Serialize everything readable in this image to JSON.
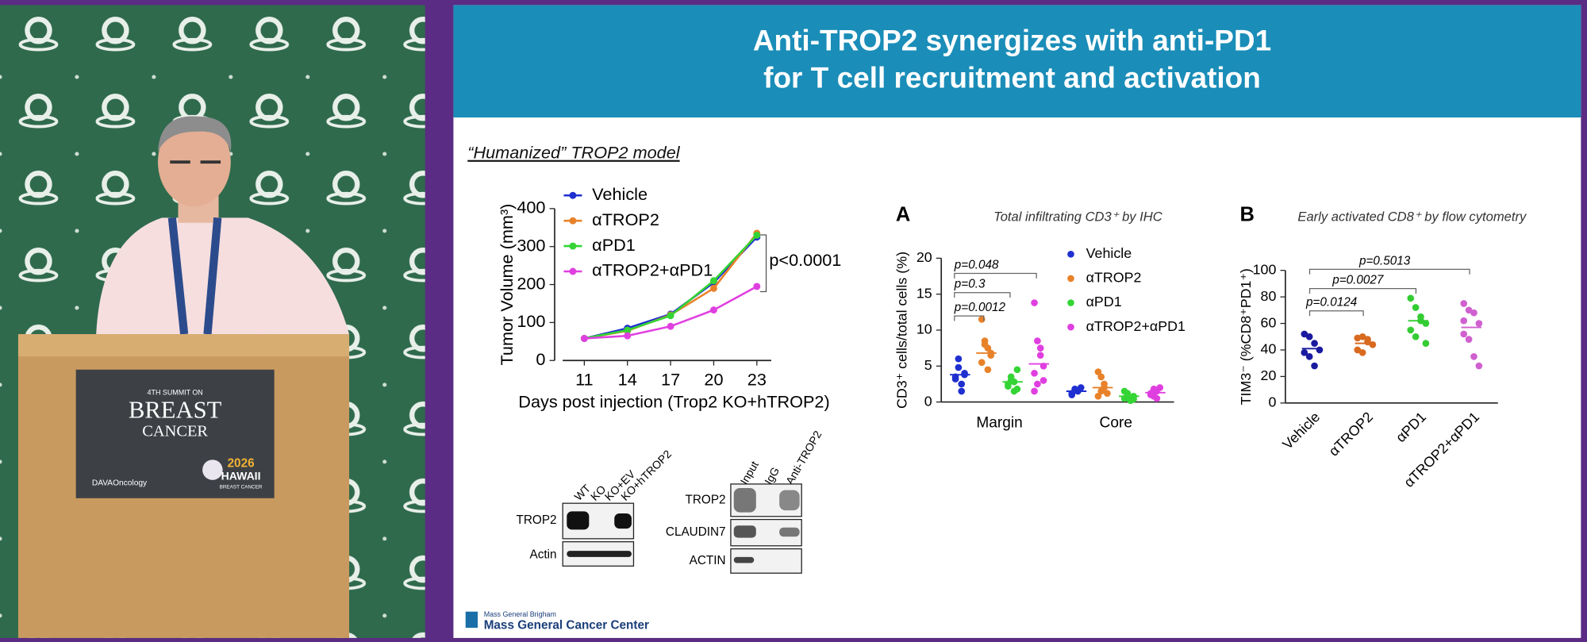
{
  "slide": {
    "title": [
      "Anti-TROP2 synergizes with anti-PD1",
      "for T cell recruitment and activation"
    ],
    "subtitle": "“Humanized” TROP2 model",
    "footer": {
      "org": "Mass General Brigham",
      "center": "Mass General Cancer Center"
    },
    "blot1": {
      "lanes": [
        "WT",
        "KO",
        "KO+EV",
        "KO+hTROP2"
      ],
      "rows": [
        "TROP2",
        "Actin"
      ]
    },
    "blot2": {
      "lanes": [
        "Input",
        "IgG",
        "Anti-TROP2"
      ],
      "rows": [
        "TROP2",
        "CLAUDIN7",
        "ACTIN"
      ]
    }
  },
  "video": {
    "sign": {
      "line1": "4TH SUMMIT ON",
      "line2": "BREAST",
      "line3": "CANCER",
      "sponsor": "DAVAOncology",
      "year": "2026",
      "place": "HAWAII",
      "place_sub": "BREAST CANCER"
    }
  },
  "chart_data": [
    {
      "type": "line",
      "x": [
        11,
        14,
        17,
        20,
        23
      ],
      "xlim": [
        9.5,
        24
      ],
      "xticks": [
        11,
        14,
        17,
        20,
        23
      ],
      "ylim": [
        0,
        400
      ],
      "yticks": [
        0,
        100,
        200,
        300,
        400
      ],
      "y_label": "Tumor Volume (mm³)",
      "x_label": "Days post injection (Trop2 KO+hTROP2)",
      "annotation": "p<0.0001",
      "series": [
        {
          "name": "Vehicle",
          "color": "#1f2fd0",
          "values": [
            58,
            85,
            122,
            205,
            325
          ]
        },
        {
          "name": "αTROP2",
          "color": "#e8822a",
          "values": [
            58,
            78,
            120,
            190,
            335
          ]
        },
        {
          "name": "αPD1",
          "color": "#35d435",
          "values": [
            58,
            80,
            118,
            210,
            330
          ]
        },
        {
          "name": "αTROP2+αPD1",
          "color": "#e03fe0",
          "values": [
            58,
            65,
            90,
            133,
            195
          ]
        }
      ]
    },
    {
      "type": "dot",
      "panel": "A",
      "title": "Total infiltrating CD3⁺ by IHC",
      "y_label": "CD3⁺ cells/total cells (%)",
      "categories": [
        "Margin",
        "Core"
      ],
      "ylim": [
        0,
        20
      ],
      "yticks": [
        0,
        5,
        10,
        15,
        20
      ],
      "annotations": [
        "p=0.048",
        "p=0.3",
        "p=0.0012"
      ],
      "series": [
        {
          "name": "Vehicle",
          "color": "#1f2fd0",
          "values": [
            3.8,
            1.5
          ],
          "points": [
            [
              3.5,
              4.8,
              2.5,
              4.0,
              3.2,
              6.0,
              1.5,
              3.8
            ],
            [
              1.2,
              1.8,
              1.5,
              2.0,
              1.0,
              1.6
            ]
          ]
        },
        {
          "name": "αTROP2",
          "color": "#e8822a",
          "values": [
            6.8,
            2.0
          ],
          "points": [
            [
              11.5,
              8,
              7.5,
              6.5,
              5.5,
              8.5,
              4.5,
              6.8
            ],
            [
              4.2,
              3.5,
              2.0,
              1.2,
              0.8,
              1.5,
              2.5
            ]
          ]
        },
        {
          "name": "αPD1",
          "color": "#35d435",
          "values": [
            2.8,
            0.8
          ],
          "points": [
            [
              2.5,
              3.5,
              1.5,
              4.5,
              2.2,
              3.0,
              2.8,
              1.8
            ],
            [
              0.5,
              1.2,
              0.3,
              0.8,
              1.5,
              0.6,
              0.2,
              0.4
            ]
          ]
        },
        {
          "name": "αTROP2+αPD1",
          "color": "#e03fe0",
          "values": [
            5.3,
            1.3
          ],
          "points": [
            [
              13.8,
              8.5,
              6.5,
              5.0,
              4.0,
              2.5,
              7.5,
              3.0,
              1.5
            ],
            [
              1.0,
              1.8,
              0.5,
              2.0,
              1.2,
              0.8,
              1.5
            ]
          ]
        }
      ]
    },
    {
      "type": "dot",
      "panel": "B",
      "title": "Early activated CD8⁺ by flow cytometry",
      "y_label": "TIM3⁻ (%CD8⁺PD1⁺)",
      "categories": [
        "Vehicle",
        "αTROP2",
        "αPD1",
        "αTROP2+αPD1"
      ],
      "colors": [
        "#1a1aa0",
        "#d86a20",
        "#33cc33",
        "#d060d0"
      ],
      "ylim": [
        0,
        100
      ],
      "yticks": [
        0,
        20,
        40,
        60,
        80,
        100
      ],
      "annotations": [
        "p=0.5013",
        "p=0.0027",
        "p=0.0124"
      ],
      "values": [
        41,
        45,
        62,
        57
      ],
      "points": [
        [
          52,
          50,
          45,
          40,
          38,
          35,
          28
        ],
        [
          49,
          50,
          46,
          44,
          40,
          38,
          48
        ],
        [
          79,
          72,
          65,
          60,
          55,
          50,
          62,
          45
        ],
        [
          75,
          70,
          68,
          60,
          52,
          48,
          35,
          28,
          62
        ]
      ]
    }
  ]
}
